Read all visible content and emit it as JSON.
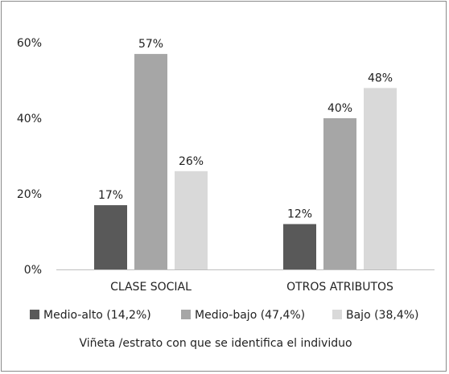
{
  "chart_data": {
    "type": "bar",
    "title": "",
    "xlabel": "Viñeta /estrato con que se identifica el individuo",
    "ylabel": "",
    "ylim": [
      0,
      60
    ],
    "y_ticks": [
      {
        "value": 0,
        "label": "0%"
      },
      {
        "value": 20,
        "label": "20%"
      },
      {
        "value": 40,
        "label": "40%"
      },
      {
        "value": 60,
        "label": "60%"
      }
    ],
    "grid": false,
    "legend": "bottom",
    "categories": [
      "CLASE SOCIAL",
      "OTROS ATRIBUTOS"
    ],
    "series": [
      {
        "name": "Medio-alto (14,2%)",
        "color": "#595959",
        "values": [
          17,
          12
        ],
        "labels": [
          "17%",
          "12%"
        ]
      },
      {
        "name": "Medio-bajo (47,4%)",
        "color": "#a6a6a6",
        "values": [
          57,
          40
        ],
        "labels": [
          "57%",
          "40%"
        ]
      },
      {
        "name": "Bajo (38,4%)",
        "color": "#d9d9d9",
        "values": [
          26,
          48
        ],
        "labels": [
          "26%",
          "48%"
        ]
      }
    ]
  }
}
